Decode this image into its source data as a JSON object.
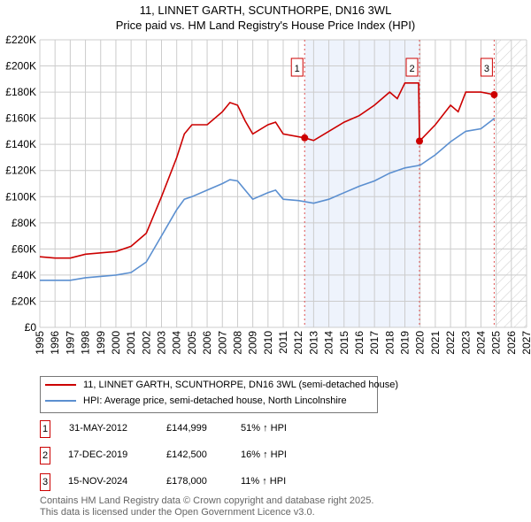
{
  "chart_data": {
    "type": "line",
    "title": "11, LINNET GARTH, SCUNTHORPE, DN16 3WL",
    "subtitle": "Price paid vs. HM Land Registry's House Price Index (HPI)",
    "xlim": [
      1995,
      2027
    ],
    "ylim": [
      0,
      220000
    ],
    "x_ticks": [
      "1995",
      "1996",
      "1997",
      "1998",
      "1999",
      "2000",
      "2001",
      "2002",
      "2003",
      "2004",
      "2005",
      "2006",
      "2007",
      "2008",
      "2009",
      "2010",
      "2011",
      "2012",
      "2013",
      "2014",
      "2015",
      "2016",
      "2017",
      "2018",
      "2019",
      "2020",
      "2021",
      "2022",
      "2023",
      "2024",
      "2025",
      "2026",
      "2027"
    ],
    "y_ticks": [
      {
        "v": 0,
        "l": "£0"
      },
      {
        "v": 20000,
        "l": "£20K"
      },
      {
        "v": 40000,
        "l": "£40K"
      },
      {
        "v": 60000,
        "l": "£60K"
      },
      {
        "v": 80000,
        "l": "£80K"
      },
      {
        "v": 100000,
        "l": "£100K"
      },
      {
        "v": 120000,
        "l": "£120K"
      },
      {
        "v": 140000,
        "l": "£140K"
      },
      {
        "v": 160000,
        "l": "£160K"
      },
      {
        "v": 180000,
        "l": "£180K"
      },
      {
        "v": 200000,
        "l": "£200K"
      },
      {
        "v": 220000,
        "l": "£220K"
      }
    ],
    "grid": true,
    "series": [
      {
        "name": "11, LINNET GARTH, SCUNTHORPE, DN16 3WL (semi-detached house)",
        "color": "#cc0000",
        "x": [
          1995,
          1996,
          1997,
          1998,
          1999,
          2000,
          2001,
          2002,
          2003,
          2004,
          2004.5,
          2005,
          2006,
          2007,
          2007.5,
          2008,
          2008.5,
          2009,
          2010,
          2010.5,
          2011,
          2012.4,
          2013,
          2014,
          2015,
          2016,
          2017,
          2018,
          2018.5,
          2019,
          2019.9,
          2019.96,
          2021,
          2022,
          2022.5,
          2023,
          2024,
          2024.87
        ],
        "y": [
          54000,
          53000,
          53000,
          56000,
          57000,
          58000,
          62000,
          72000,
          100000,
          130000,
          148000,
          155000,
          155000,
          165000,
          172000,
          170000,
          158000,
          148000,
          155000,
          157000,
          148000,
          145000,
          143000,
          150000,
          157000,
          162000,
          170000,
          180000,
          175000,
          187000,
          187000,
          142500,
          155000,
          170000,
          165000,
          180000,
          180000,
          178000
        ]
      },
      {
        "name": "HPI: Average price, semi-detached house, North Lincolnshire",
        "color": "#5b8fd0",
        "x": [
          1995,
          1996,
          1997,
          1998,
          1999,
          2000,
          2001,
          2002,
          2003,
          2004,
          2004.5,
          2005,
          2006,
          2007,
          2007.5,
          2008,
          2008.5,
          2009,
          2010,
          2010.5,
          2011,
          2012,
          2013,
          2014,
          2015,
          2016,
          2017,
          2018,
          2019,
          2020,
          2021,
          2022,
          2023,
          2024,
          2024.9
        ],
        "y": [
          36000,
          36000,
          36000,
          38000,
          39000,
          40000,
          42000,
          50000,
          70000,
          90000,
          98000,
          100000,
          105000,
          110000,
          113000,
          112000,
          105000,
          98000,
          103000,
          105000,
          98000,
          97000,
          95000,
          98000,
          103000,
          108000,
          112000,
          118000,
          122000,
          124000,
          132000,
          142000,
          150000,
          152000,
          160000
        ]
      }
    ],
    "sales": [
      {
        "n": "1",
        "x": 2012.41,
        "y": 144999,
        "date": "31-MAY-2012",
        "price": "£144,999",
        "hpi": "51% ↑ HPI"
      },
      {
        "n": "2",
        "x": 2019.96,
        "y": 142500,
        "date": "17-DEC-2019",
        "price": "£142,500",
        "hpi": "16% ↑ HPI"
      },
      {
        "n": "3",
        "x": 2024.87,
        "y": 178000,
        "date": "15-NOV-2024",
        "price": "£178,000",
        "hpi": "11% ↑ HPI"
      }
    ],
    "forecast_from": 2025
  },
  "footer": [
    "Contains HM Land Registry data © Crown copyright and database right 2025.",
    "This data is licensed under the Open Government Licence v3.0."
  ]
}
